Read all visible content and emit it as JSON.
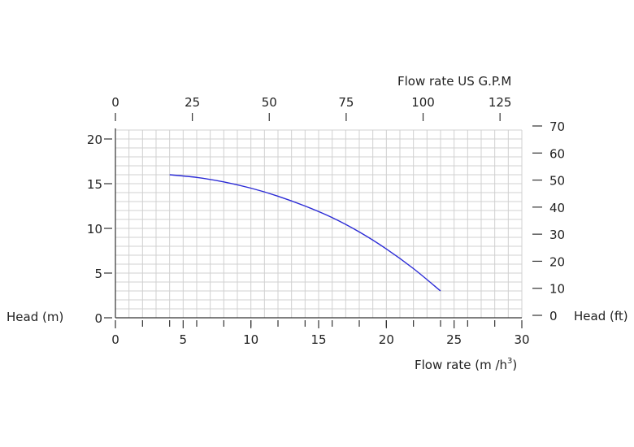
{
  "chart_data": {
    "type": "line",
    "x_axis_bottom": {
      "label": "Flow rate  (m /h",
      "label_superscript": "3",
      "label_close": ")",
      "ticks": [
        0,
        5,
        10,
        15,
        20,
        25,
        30
      ],
      "range": [
        0,
        30
      ]
    },
    "x_axis_top": {
      "label": "Flow rate US  G.P.M",
      "ticks": [
        0,
        25,
        50,
        75,
        100,
        125
      ]
    },
    "y_axis_left": {
      "label": "Head (m)",
      "ticks": [
        0,
        5,
        10,
        15,
        20
      ],
      "range": [
        0,
        21
      ]
    },
    "y_axis_right": {
      "label": "Head (ft)",
      "ticks": [
        0,
        10,
        20,
        30,
        40,
        50,
        60,
        70
      ]
    },
    "grid": true,
    "series": [
      {
        "color": "#2b2bd6",
        "x": [
          4,
          6,
          8,
          10,
          12,
          14,
          16,
          18,
          20,
          22,
          24
        ],
        "y": [
          16.0,
          15.7,
          15.2,
          14.5,
          13.6,
          12.5,
          11.2,
          9.6,
          7.7,
          5.5,
          3.0
        ]
      }
    ]
  }
}
